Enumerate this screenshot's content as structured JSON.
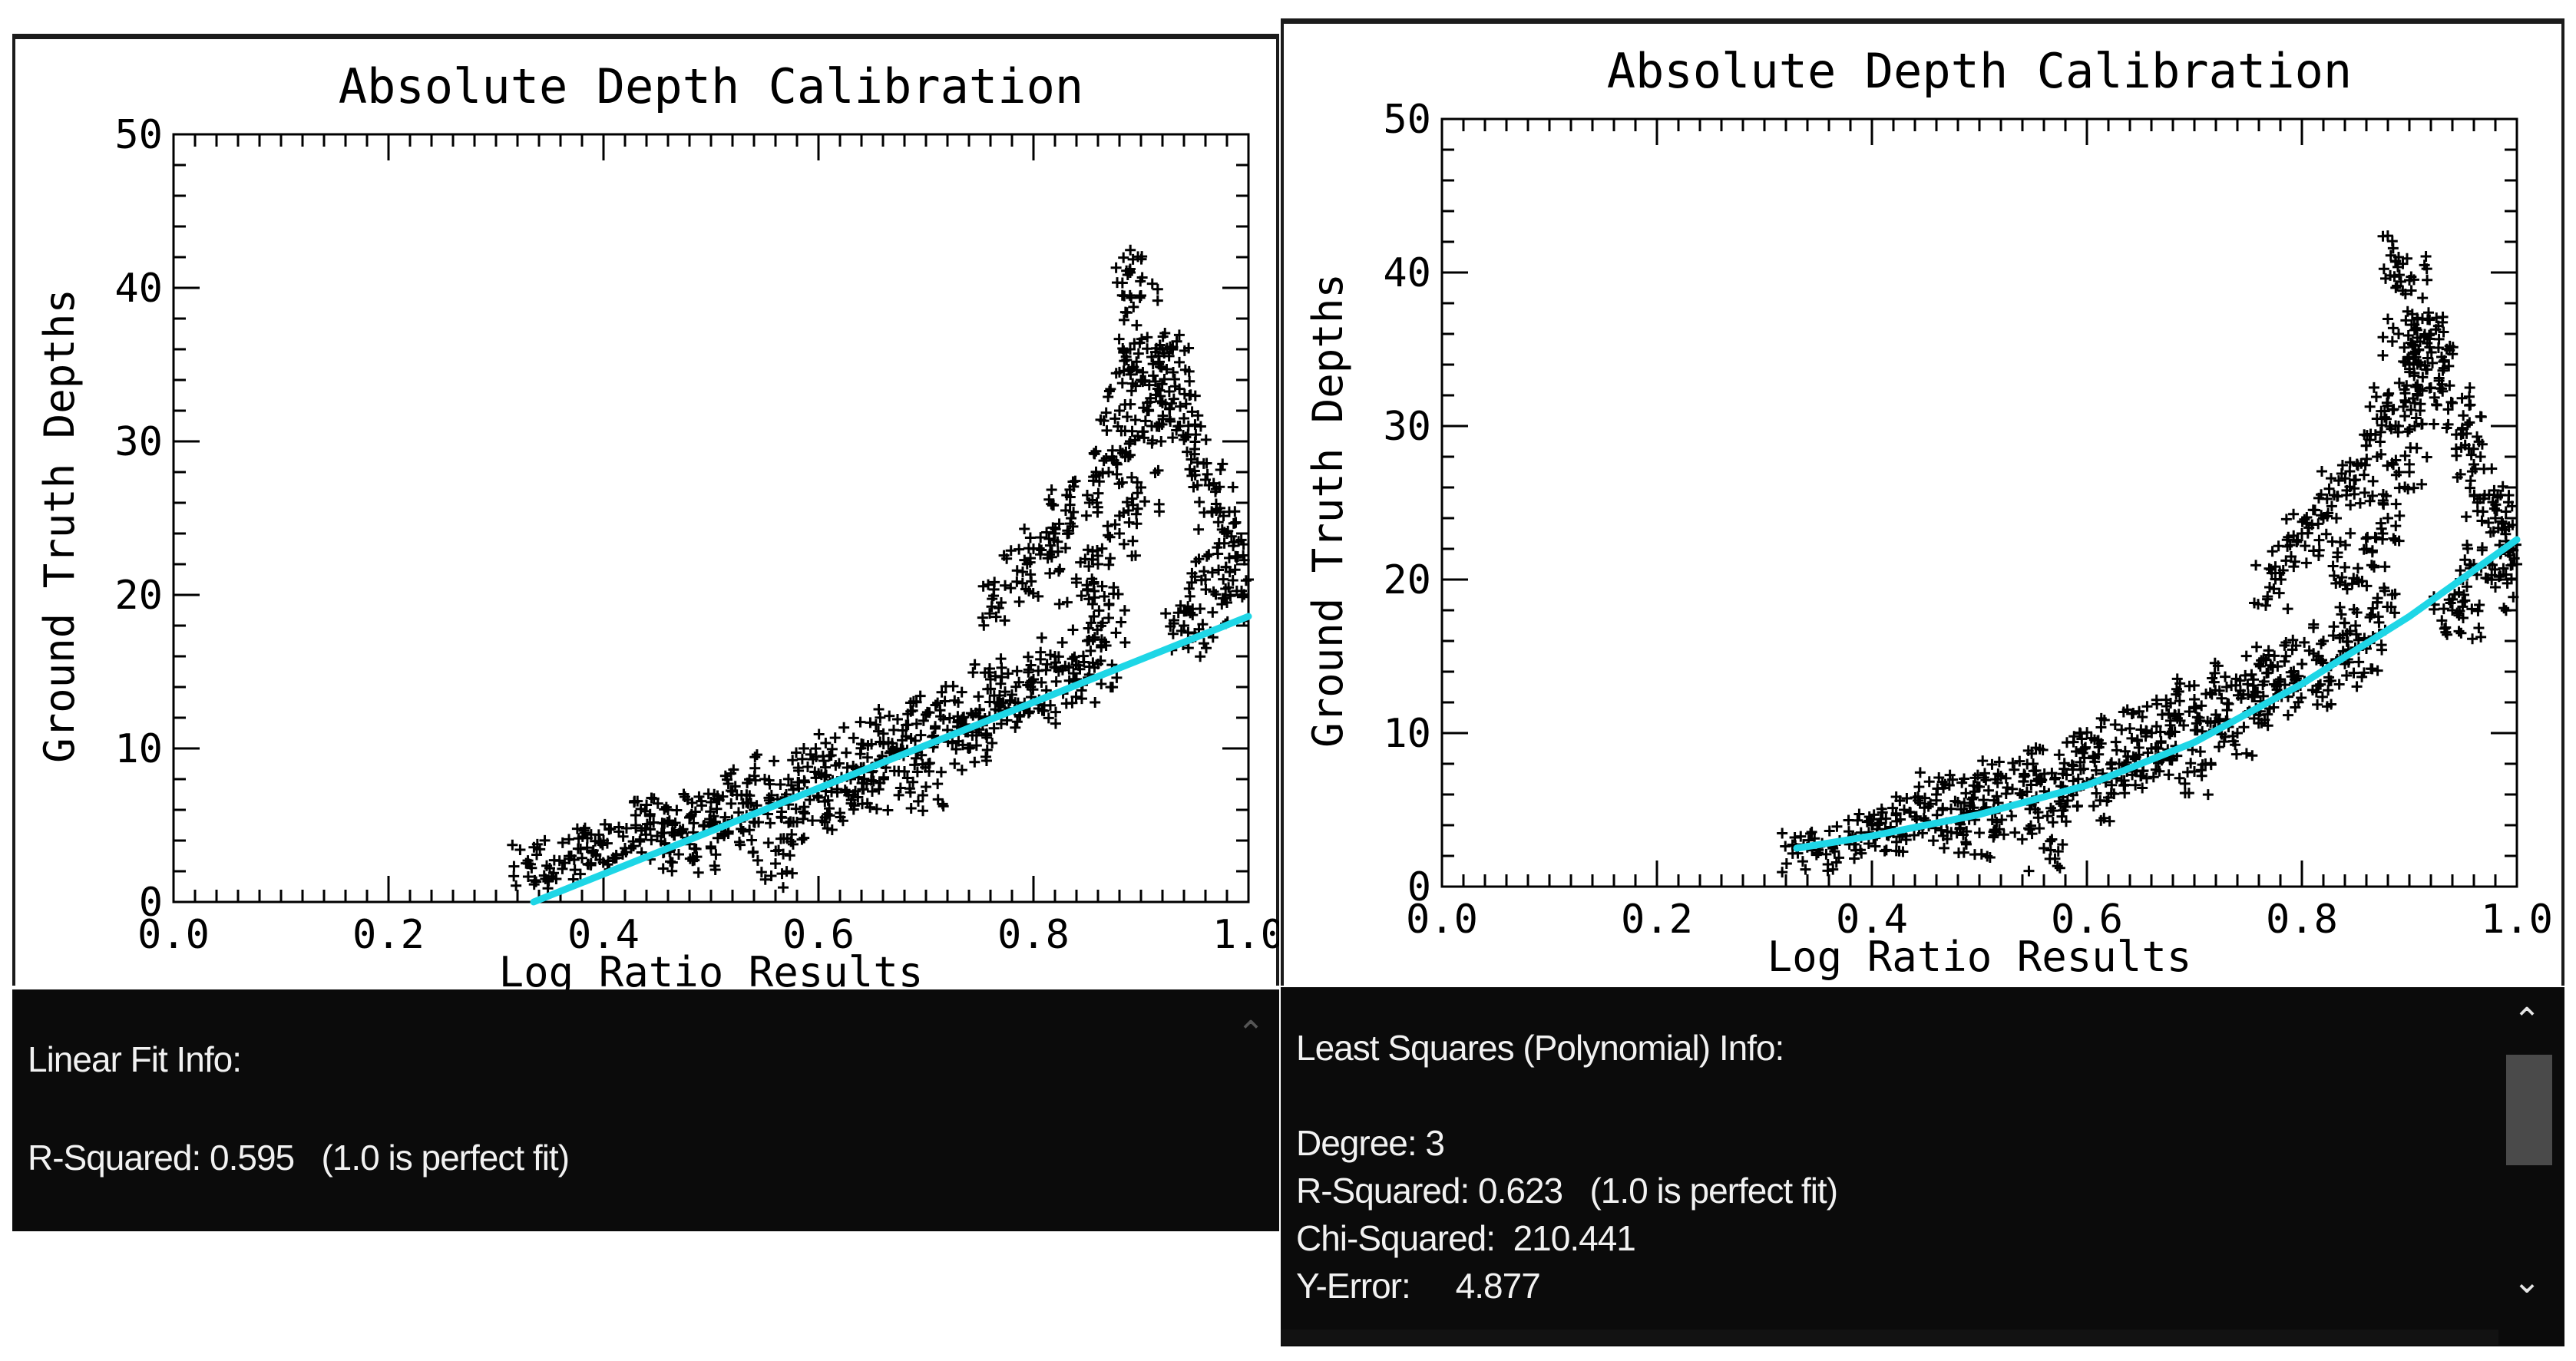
{
  "chart_data": [
    {
      "type": "scatter",
      "title": "Absolute Depth Calibration",
      "xlabel": "Log Ratio Results",
      "ylabel": "Ground Truth Depths",
      "xlim": [
        0.0,
        1.0
      ],
      "ylim": [
        0,
        50
      ],
      "xticks": [
        "0.0",
        "0.2",
        "0.4",
        "0.6",
        "0.8",
        "1.0"
      ],
      "yticks": [
        "0",
        "10",
        "20",
        "30",
        "40",
        "50"
      ],
      "grid": false,
      "fit_type": "linear",
      "fit_color": "#1ed6e6",
      "fit_points": {
        "x": [
          0.335,
          1.0
        ],
        "y": [
          0,
          18.6
        ]
      }
    },
    {
      "type": "scatter",
      "title": "Absolute Depth Calibration",
      "xlabel": "Log Ratio Results",
      "ylabel": "Ground Truth Depths",
      "xlim": [
        0.0,
        1.0
      ],
      "ylim": [
        0,
        50
      ],
      "xticks": [
        "0.0",
        "0.2",
        "0.4",
        "0.6",
        "0.8",
        "1.0"
      ],
      "yticks": [
        "0",
        "10",
        "20",
        "30",
        "40",
        "50"
      ],
      "grid": false,
      "fit_type": "polynomial",
      "fit_color": "#1ed6e6",
      "fit_points": {
        "x": [
          0.33,
          0.4,
          0.5,
          0.6,
          0.7,
          0.8,
          0.9,
          1.0
        ],
        "y": [
          2.5,
          3.3,
          4.7,
          6.6,
          9.4,
          13.2,
          17.6,
          22.6
        ]
      }
    }
  ],
  "scatter_points": [
    [
      0.33,
      2.5
    ],
    [
      0.35,
      2.2
    ],
    [
      0.37,
      3.0
    ],
    [
      0.39,
      3.2
    ],
    [
      0.4,
      4.0
    ],
    [
      0.42,
      3.5
    ],
    [
      0.43,
      5.0
    ],
    [
      0.45,
      4.3
    ],
    [
      0.46,
      6.0
    ],
    [
      0.47,
      3.1
    ],
    [
      0.48,
      5.5
    ],
    [
      0.5,
      6.5
    ],
    [
      0.5,
      3.5
    ],
    [
      0.52,
      7.2
    ],
    [
      0.53,
      4.6
    ],
    [
      0.54,
      6.0
    ],
    [
      0.55,
      8.0
    ],
    [
      0.56,
      2.5
    ],
    [
      0.57,
      7.0
    ],
    [
      0.58,
      5.2
    ],
    [
      0.59,
      8.8
    ],
    [
      0.6,
      6.8
    ],
    [
      0.61,
      9.5
    ],
    [
      0.62,
      5.8
    ],
    [
      0.63,
      8.0
    ],
    [
      0.64,
      10.3
    ],
    [
      0.65,
      7.2
    ],
    [
      0.66,
      9.0
    ],
    [
      0.67,
      11.2
    ],
    [
      0.68,
      8.5
    ],
    [
      0.69,
      10.5
    ],
    [
      0.7,
      12.2
    ],
    [
      0.7,
      7.5
    ],
    [
      0.72,
      11.2
    ],
    [
      0.73,
      13.0
    ],
    [
      0.74,
      10.0
    ],
    [
      0.75,
      12.5
    ],
    [
      0.76,
      14.5
    ],
    [
      0.77,
      11.6
    ],
    [
      0.77,
      19.5
    ],
    [
      0.78,
      13.5
    ],
    [
      0.79,
      21.5
    ],
    [
      0.8,
      14.5
    ],
    [
      0.8,
      23.0
    ],
    [
      0.81,
      12.8
    ],
    [
      0.82,
      24.0
    ],
    [
      0.82,
      16.0
    ],
    [
      0.83,
      25.5
    ],
    [
      0.84,
      14.5
    ],
    [
      0.84,
      20.8
    ],
    [
      0.85,
      17.0
    ],
    [
      0.85,
      26.5
    ],
    [
      0.86,
      22.0
    ],
    [
      0.86,
      15.5
    ],
    [
      0.87,
      28.0
    ],
    [
      0.87,
      18.5
    ],
    [
      0.88,
      32.0
    ],
    [
      0.88,
      24.0
    ],
    [
      0.89,
      36.0
    ],
    [
      0.89,
      30.0
    ],
    [
      0.89,
      41.0
    ],
    [
      0.9,
      39.5
    ],
    [
      0.9,
      34.0
    ],
    [
      0.9,
      27.0
    ],
    [
      0.91,
      35.5
    ],
    [
      0.91,
      31.0
    ],
    [
      0.92,
      36.0
    ],
    [
      0.92,
      32.5
    ],
    [
      0.93,
      34.5
    ],
    [
      0.94,
      31.5
    ],
    [
      0.94,
      18.0
    ],
    [
      0.95,
      29.5
    ],
    [
      0.95,
      17.5
    ],
    [
      0.96,
      27.5
    ],
    [
      0.96,
      21.0
    ],
    [
      0.97,
      25.5
    ],
    [
      0.98,
      24.0
    ],
    [
      0.98,
      19.5
    ],
    [
      0.99,
      22.5
    ],
    [
      1.0,
      21.0
    ]
  ],
  "left_info": {
    "title": "Linear Fit Info:",
    "r_squared": "R-Squared: 0.595   (1.0 is perfect fit)",
    "scroll_up_icon": "chevron-up-icon"
  },
  "right_info": {
    "title": "Least Squares (Polynomial) Info:",
    "degree": "Degree: 3",
    "r_squared": "R-Squared: 0.623   (1.0 is perfect fit)",
    "chi_squared": "Chi-Squared:  210.441",
    "y_error": "Y-Error:     4.877",
    "scroll_up_icon": "chevron-up-icon",
    "scroll_down_icon": "chevron-down-icon"
  }
}
